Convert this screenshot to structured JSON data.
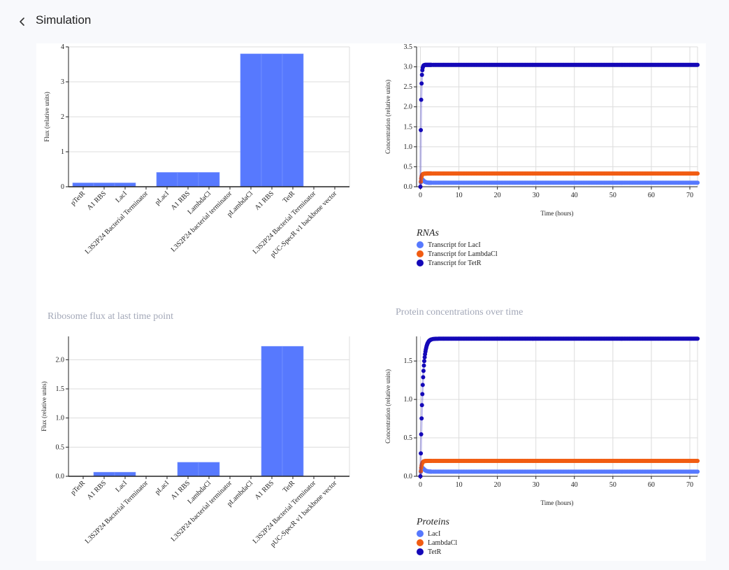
{
  "page": {
    "title": "Simulation"
  },
  "icons": {
    "back": "chevron-left-icon"
  },
  "colors": {
    "bar": "#5779fe",
    "lacI": "#5779fe",
    "lambdaCl": "#f15c12",
    "tetR": "#1408b8"
  },
  "chart_data": [
    {
      "id": "rnapFlux",
      "type": "bar",
      "title": "",
      "xlabel": "",
      "ylabel": "Flux (relative units)",
      "ylim": [
        0,
        4
      ],
      "yticks": [
        0,
        1,
        2,
        3,
        4
      ],
      "ytick_labels": [
        "0",
        "1",
        "2",
        "3",
        "4"
      ],
      "categories": [
        "pTetR",
        "A1 RBS",
        "LacI",
        "L3S2P24 Bacterial Terminator",
        "pLacI",
        "A1 RBS",
        "LambdaCl",
        "L3S2P24 bacterial terminator",
        "pLambdaCl",
        "A1 RBS",
        "TetR",
        "L3S2P24 Bacterial Terminator",
        "pUC-SpecR v1 backbone vector"
      ],
      "values": [
        0.11,
        0.11,
        0.11,
        0,
        0.41,
        0.41,
        0.41,
        0,
        3.8,
        3.8,
        3.8,
        0,
        0
      ],
      "grid": true
    },
    {
      "id": "rnaConc",
      "type": "line",
      "title": "",
      "xlabel": "Time (hours)",
      "ylabel": "Concentration (relative units)",
      "xlim": [
        -1,
        72
      ],
      "ylim": [
        0,
        3.5
      ],
      "xticks": [
        0,
        10,
        20,
        30,
        40,
        50,
        60,
        70
      ],
      "yticks": [
        0,
        0.5,
        1,
        1.5,
        2,
        2.5,
        3,
        3.5
      ],
      "ytick_labels": [
        "0.0",
        "0.5",
        "1.0",
        "1.5",
        "2.0",
        "2.5",
        "3.0",
        "3.5"
      ],
      "legend_title": "RNAs",
      "legend_position": "bottom-left",
      "series": [
        {
          "name": "Transcript for LacI",
          "color": "#5779fe",
          "steady": 0.1,
          "peak": 0.22,
          "tau": 0.3
        },
        {
          "name": "Transcript for LambdaCl",
          "color": "#f15c12",
          "steady": 0.33,
          "tau": 0.2
        },
        {
          "name": "Transcript for TetR",
          "color": "#1408b8",
          "steady": 3.05,
          "tau": 0.16
        }
      ],
      "grid": true
    },
    {
      "id": "riboFlux",
      "type": "bar",
      "title": "Ribosome flux at last time point",
      "xlabel": "",
      "ylabel": "Flux (relative units)",
      "ylim": [
        0,
        2.4
      ],
      "yticks": [
        0,
        0.5,
        1,
        1.5,
        2
      ],
      "ytick_labels": [
        "0.0",
        "0.5",
        "1.0",
        "1.5",
        "2.0"
      ],
      "categories": [
        "pTetR",
        "A1 RBS",
        "LacI",
        "L3S2P24 Bacterial Terminator",
        "pLacI",
        "A1 RBS",
        "LambdaCl",
        "L3S2P24 bacterial terminator",
        "pLambdaCl",
        "A1 RBS",
        "TetR",
        "L3S2P24 Bacterial Terminator",
        "pUC-SpecR v1 backbone vector"
      ],
      "values": [
        0,
        0.07,
        0.07,
        0,
        0,
        0.24,
        0.24,
        0,
        0,
        2.23,
        2.23,
        0,
        0
      ],
      "grid": true
    },
    {
      "id": "protConc",
      "type": "line",
      "title": "Protein concentrations over time",
      "xlabel": "Time (hours)",
      "ylabel": "Concentration (relative units)",
      "xlim": [
        -1,
        72
      ],
      "ylim": [
        0,
        1.82
      ],
      "xticks": [
        0,
        10,
        20,
        30,
        40,
        50,
        60,
        70
      ],
      "yticks": [
        0,
        0.5,
        1,
        1.5
      ],
      "ytick_labels": [
        "0.0",
        "0.5",
        "1.0",
        "1.5"
      ],
      "legend_title": "Proteins",
      "legend_position": "bottom-left",
      "series": [
        {
          "name": "LacI",
          "color": "#5779fe",
          "steady": 0.06,
          "peak": 0.13,
          "tau": 0.35
        },
        {
          "name": "LambdaCl",
          "color": "#f15c12",
          "steady": 0.2,
          "tau": 0.25
        },
        {
          "name": "TetR",
          "color": "#1408b8",
          "steady": 1.79,
          "tau": 0.55
        }
      ],
      "grid": true
    }
  ]
}
